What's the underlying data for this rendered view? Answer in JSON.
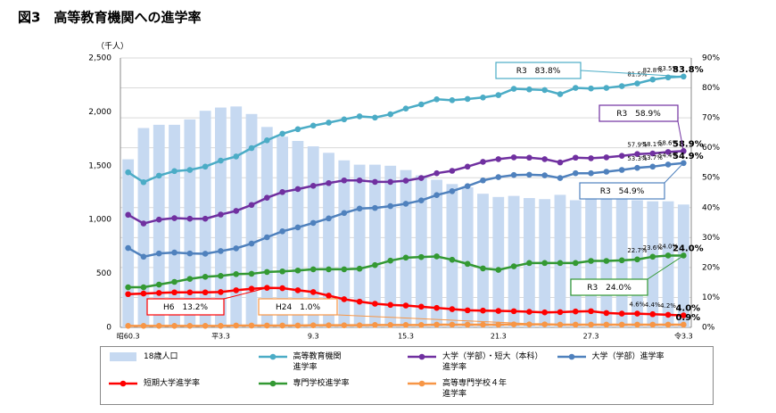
{
  "chart_data": {
    "type": "bar",
    "title": "図3　高等教育機関への進学率",
    "y_unit_label": "（千人）",
    "categories": [
      "昭60.3",
      null,
      null,
      null,
      null,
      null,
      "平3.3",
      null,
      null,
      null,
      null,
      null,
      "9.3",
      null,
      null,
      null,
      null,
      null,
      "15.3",
      null,
      null,
      null,
      null,
      null,
      "21.3",
      null,
      null,
      null,
      null,
      null,
      "27.3",
      null,
      null,
      null,
      null,
      null,
      "令3.3"
    ],
    "ylim": [
      0,
      2500
    ],
    "yticks": [
      0,
      500,
      {
        "value": 1000,
        "label": "1,000"
      },
      {
        "value": 1500,
        "label": "1,500"
      },
      {
        "value": 2000,
        "label": "2,000"
      },
      {
        "value": 2500,
        "label": "2,500"
      }
    ],
    "y2lim": [
      0,
      90
    ],
    "y2ticks": [
      {
        "value": 0,
        "label": "0%"
      },
      {
        "value": 10,
        "label": "10%"
      },
      {
        "value": 20,
        "label": "20%"
      },
      {
        "value": 30,
        "label": "30%"
      },
      {
        "value": 40,
        "label": "40%"
      },
      {
        "value": 50,
        "label": "50%"
      },
      {
        "value": 60,
        "label": "60%"
      },
      {
        "value": 70,
        "label": "70%"
      },
      {
        "value": 80,
        "label": "80%"
      },
      {
        "value": 90,
        "label": "90%"
      }
    ],
    "grid": true,
    "legend": "bottom",
    "series": [
      {
        "name": "18歳人口",
        "type": "bar",
        "color": "#c6d9f1",
        "values": [
          1560,
          1850,
          1880,
          1880,
          1930,
          2010,
          2040,
          2050,
          1980,
          1860,
          1770,
          1730,
          1680,
          1620,
          1550,
          1510,
          1510,
          1500,
          1460,
          1410,
          1370,
          1330,
          1300,
          1240,
          1210,
          1220,
          1200,
          1190,
          1230,
          1180,
          1200,
          1190,
          1200,
          1180,
          1170,
          1170,
          1140
        ]
      },
      {
        "name": "高等教育機関\n進学率",
        "type": "line",
        "axis": "y2",
        "color": "#4bacc6",
        "values": [
          51.8,
          48.5,
          50.7,
          52.2,
          52.6,
          53.7,
          55.7,
          57.1,
          59.9,
          62.5,
          64.7,
          66.2,
          67.4,
          68.4,
          69.5,
          70.5,
          70.1,
          71.2,
          73.1,
          74.5,
          76.2,
          75.9,
          76.3,
          76.8,
          77.6,
          79.7,
          79.5,
          79.3,
          77.9,
          80.0,
          79.8,
          80.0,
          80.6,
          81.5,
          82.8,
          83.5,
          83.8
        ],
        "value_labels": [
          null,
          null,
          null,
          null,
          null,
          null,
          null,
          null,
          null,
          null,
          null,
          null,
          null,
          null,
          null,
          null,
          null,
          null,
          null,
          null,
          null,
          null,
          null,
          null,
          null,
          null,
          null,
          null,
          null,
          null,
          null,
          null,
          null,
          "81.5%",
          "82.8%",
          "83.5%",
          "83.8%"
        ]
      },
      {
        "name": "大学（学部）・短大（本科）\n進学率",
        "type": "line",
        "axis": "y2",
        "color": "#7030a0",
        "values": [
          37.6,
          34.7,
          36.0,
          36.5,
          36.3,
          36.3,
          37.7,
          38.9,
          40.9,
          43.3,
          45.2,
          46.2,
          47.3,
          48.2,
          49.1,
          49.1,
          48.6,
          48.6,
          49.0,
          49.9,
          51.5,
          52.3,
          53.7,
          55.3,
          56.2,
          56.8,
          56.7,
          56.2,
          55.1,
          56.7,
          56.5,
          56.8,
          57.3,
          57.9,
          58.1,
          58.6,
          58.9
        ],
        "value_labels": [
          null,
          null,
          null,
          null,
          null,
          null,
          null,
          null,
          null,
          null,
          null,
          null,
          null,
          null,
          null,
          null,
          null,
          null,
          null,
          null,
          null,
          null,
          null,
          null,
          null,
          null,
          null,
          null,
          null,
          null,
          null,
          null,
          null,
          "57.9%",
          "58.1%",
          "58.6%",
          "58.9%"
        ]
      },
      {
        "name": "大学（学部）進学率",
        "type": "line",
        "axis": "y2",
        "color": "#4f81bd",
        "values": [
          26.5,
          23.6,
          24.7,
          25.0,
          24.7,
          24.6,
          25.5,
          26.4,
          28.0,
          30.1,
          32.1,
          33.4,
          34.9,
          36.4,
          38.2,
          39.7,
          39.9,
          40.5,
          41.3,
          42.4,
          44.2,
          45.5,
          47.2,
          49.1,
          50.2,
          50.9,
          51.0,
          50.8,
          49.9,
          51.5,
          51.5,
          52.0,
          52.6,
          53.3,
          53.7,
          54.4,
          54.9
        ],
        "value_labels": [
          null,
          null,
          null,
          null,
          null,
          null,
          null,
          null,
          null,
          null,
          null,
          null,
          null,
          null,
          null,
          null,
          null,
          null,
          null,
          null,
          null,
          null,
          null,
          null,
          null,
          null,
          null,
          null,
          null,
          null,
          null,
          null,
          null,
          "53.3%",
          "53.7%",
          "54.4%",
          "54.9%"
        ]
      },
      {
        "name": "短期大学進学率",
        "type": "line",
        "axis": "y2",
        "color": "#ff0000",
        "values": [
          11.1,
          11.3,
          11.5,
          11.7,
          11.7,
          11.7,
          11.8,
          12.4,
          12.9,
          13.2,
          13.1,
          12.4,
          11.8,
          10.6,
          9.4,
          8.6,
          7.9,
          7.5,
          7.3,
          6.9,
          6.5,
          6.1,
          5.7,
          5.6,
          5.5,
          5.4,
          5.2,
          5.0,
          5.1,
          5.3,
          5.4,
          4.8,
          4.6,
          4.6,
          4.4,
          4.2,
          4.0
        ],
        "value_labels": [
          null,
          null,
          null,
          null,
          null,
          null,
          null,
          null,
          null,
          null,
          null,
          null,
          null,
          null,
          null,
          null,
          null,
          null,
          null,
          null,
          null,
          null,
          null,
          null,
          null,
          null,
          null,
          null,
          null,
          null,
          null,
          null,
          null,
          "4.6%",
          "4.4%",
          "4.2%",
          "4.0%"
        ]
      },
      {
        "name": "専門学校進学率",
        "type": "line",
        "axis": "y2",
        "color": "#339933",
        "values": [
          13.4,
          13.4,
          14.3,
          15.2,
          16.2,
          16.9,
          17.2,
          17.8,
          17.9,
          18.5,
          18.7,
          19.0,
          19.4,
          19.4,
          19.4,
          19.6,
          20.8,
          22.3,
          23.3,
          23.5,
          23.7,
          22.6,
          21.2,
          19.7,
          19.2,
          20.4,
          21.5,
          21.5,
          21.5,
          21.5,
          22.2,
          22.2,
          22.4,
          22.7,
          23.6,
          24.0,
          24.0
        ],
        "value_labels": [
          null,
          null,
          null,
          null,
          null,
          null,
          null,
          null,
          null,
          null,
          null,
          null,
          null,
          null,
          null,
          null,
          null,
          null,
          null,
          null,
          null,
          null,
          null,
          null,
          null,
          null,
          null,
          null,
          null,
          null,
          null,
          null,
          null,
          "22.7%",
          "23.6%",
          "24.0%",
          "24.0%"
        ]
      },
      {
        "name": "高等専門学校４年\n進学率",
        "type": "line",
        "axis": "y2",
        "color": "#f79646",
        "values": [
          0.5,
          0.5,
          0.5,
          0.5,
          0.5,
          0.5,
          0.5,
          0.6,
          0.6,
          0.6,
          0.6,
          0.6,
          0.7,
          0.7,
          0.7,
          0.7,
          0.8,
          0.8,
          0.8,
          0.8,
          0.9,
          0.9,
          0.9,
          0.9,
          0.9,
          1.0,
          1.0,
          1.0,
          0.9,
          0.9,
          0.9,
          0.9,
          0.9,
          0.9,
          0.9,
          0.9,
          0.9
        ],
        "value_labels": [
          null,
          null,
          null,
          null,
          null,
          null,
          null,
          null,
          null,
          null,
          null,
          null,
          null,
          null,
          null,
          null,
          null,
          null,
          null,
          null,
          null,
          null,
          null,
          null,
          null,
          null,
          null,
          null,
          null,
          null,
          null,
          null,
          null,
          null,
          null,
          null,
          "0.9%"
        ]
      }
    ],
    "annotations": [
      {
        "text": "R3　83.8%",
        "color": "#4bacc6"
      },
      {
        "text": "R3　58.9%",
        "color": "#7030a0"
      },
      {
        "text": "R3　54.9%",
        "color": "#4f81bd"
      },
      {
        "text": "R3　24.0%",
        "color": "#339933"
      },
      {
        "text": "H6　13.2%",
        "color": "#ff0000"
      },
      {
        "text": "H24　1.0%",
        "color": "#f79646"
      }
    ]
  }
}
